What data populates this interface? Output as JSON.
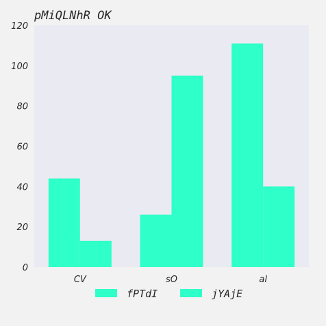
{
  "chart_data": {
    "type": "bar",
    "title": "pMiQLNhR OK",
    "categories": [
      "CV",
      "sO",
      "al"
    ],
    "series": [
      {
        "name": "fPTdI",
        "values": [
          44,
          26,
          111
        ]
      },
      {
        "name": "jYAjE",
        "values": [
          13,
          95,
          40
        ]
      }
    ],
    "ylim": [
      0,
      120
    ],
    "yticks": [
      "0",
      "20",
      "40",
      "60",
      "80",
      "100",
      "120"
    ],
    "grid": false,
    "legend": "bottom-center",
    "colors": {
      "plot_background": "#eaeaf2",
      "bar": "#2fffc8",
      "page_background": "#f2f2f2"
    }
  }
}
